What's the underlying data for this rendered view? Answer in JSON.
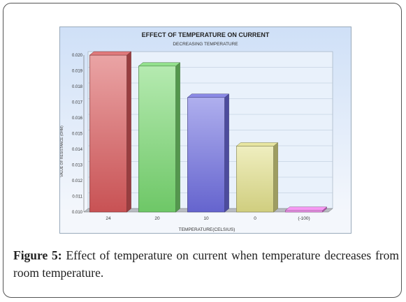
{
  "chart_data": {
    "type": "bar",
    "title": "EFFECT OF TEMPERATURE ON CURRENT",
    "subtitle": "DECREASING TEMPERATURE",
    "xlabel": "TEMPERATURE(CELSIUS)",
    "ylabel": "VALUE OF RESISTANCE (OHM)",
    "categories": [
      "24",
      "20",
      "10",
      "0",
      "(-100)"
    ],
    "values": [
      0.02,
      0.0193,
      0.0173,
      0.0142,
      0.0101
    ],
    "ylim": [
      0.01,
      0.02
    ],
    "yticks": [
      "0.010",
      "0.011",
      "0.012",
      "0.013",
      "0.014",
      "0.015",
      "0.016",
      "0.017",
      "0.018",
      "0.019",
      "0.020"
    ],
    "bar_colors": [
      "#d9595b",
      "#78d870",
      "#6e6de0",
      "#e2e08a",
      "#f47ff0"
    ],
    "grid": true,
    "bar_style": "3d"
  },
  "caption": {
    "lead": "Figure 5:",
    "text": " Effect of temperature on current when temperature decreases from room temperature."
  }
}
